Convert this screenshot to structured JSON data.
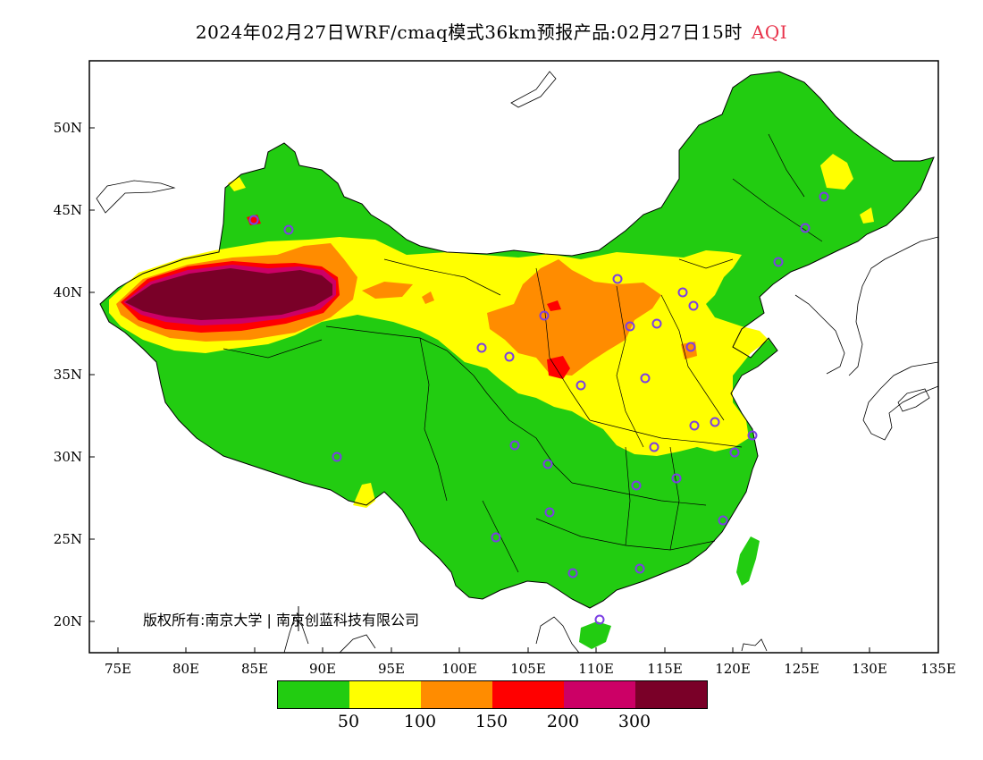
{
  "title": {
    "text": "2024年02月27日WRF/cmaq模式36km预报产品:02月27日15时",
    "product": "AQI"
  },
  "axes": {
    "lat_labels": [
      "50N",
      "45N",
      "40N",
      "35N",
      "30N",
      "25N",
      "20N"
    ],
    "lon_labels": [
      "75E",
      "80E",
      "85E",
      "90E",
      "95E",
      "100E",
      "105E",
      "110E",
      "115E",
      "120E",
      "125E",
      "130E",
      "135E"
    ]
  },
  "copyright": "版权所有:南京大学 | 南京创蓝科技有限公司",
  "legend": {
    "colors": [
      "#22cc11",
      "#ffff00",
      "#ff8c00",
      "#ff0000",
      "#cc0066",
      "#7a0028"
    ],
    "thresholds": [
      "50",
      "100",
      "150",
      "200",
      "300"
    ]
  },
  "palette": {
    "good": "#22cc11",
    "moderate": "#ffff00",
    "usg": "#ff8c00",
    "unhealthy": "#ff0000",
    "very_unhealthy": "#cc0066",
    "hazardous": "#7a0028",
    "station": "#7b3fe4"
  }
}
